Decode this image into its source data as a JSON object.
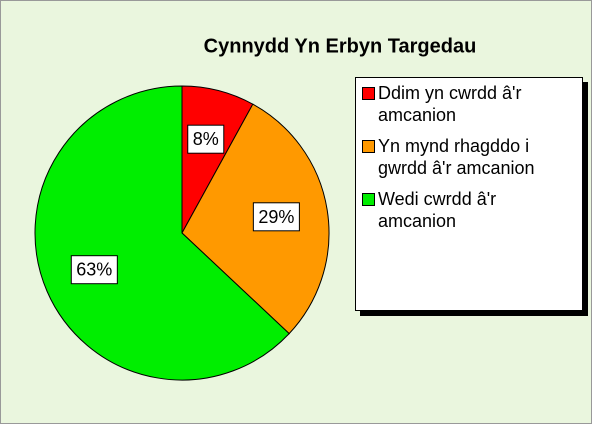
{
  "chart_data": {
    "type": "pie",
    "title": "Cynnydd Yn Erbyn Targedau",
    "categories": [
      "Ddim yn cwrdd â'r amcanion",
      "Yn mynd rhagddo i gwrdd â'r amcanion",
      "Wedi cwrdd â'r amcanion"
    ],
    "values": [
      8,
      29,
      63
    ],
    "value_labels": [
      "8%",
      "29%",
      "63%"
    ],
    "colors": [
      "#ff0000",
      "#ff9900",
      "#00ee00"
    ],
    "legend": "right"
  }
}
